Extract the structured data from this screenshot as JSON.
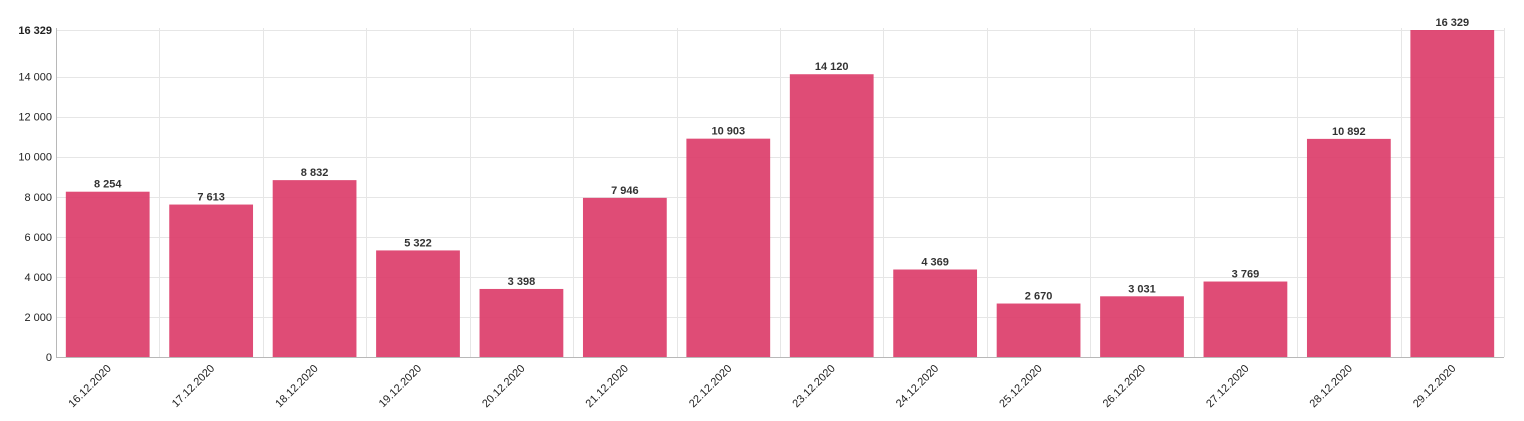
{
  "chart_data": {
    "type": "bar",
    "categories": [
      "16.12.2020",
      "17.12.2020",
      "18.12.2020",
      "19.12.2020",
      "20.12.2020",
      "21.12.2020",
      "22.12.2020",
      "23.12.2020",
      "24.12.2020",
      "25.12.2020",
      "26.12.2020",
      "27.12.2020",
      "28.12.2020",
      "29.12.2020"
    ],
    "values": [
      8254,
      7613,
      8832,
      5322,
      3398,
      7946,
      10903,
      14120,
      4369,
      2670,
      3031,
      3769,
      10892,
      16329
    ],
    "data_labels": [
      "8 254",
      "7 613",
      "8 832",
      "5 322",
      "3 398",
      "7 946",
      "10 903",
      "14 120",
      "4 369",
      "2 670",
      "3 031",
      "3 769",
      "10 892",
      "16 329"
    ],
    "y_ticks": [
      0,
      2000,
      4000,
      6000,
      8000,
      10000,
      12000,
      14000,
      16329
    ],
    "y_tick_labels": [
      "0",
      "2 000",
      "4 000",
      "6 000",
      "8 000",
      "10 000",
      "12 000",
      "14 000",
      "16 329"
    ],
    "ylim": [
      0,
      16329
    ],
    "grid": true,
    "legend": "none",
    "bar_color": "#dc3d6a",
    "title": "",
    "xlabel": "",
    "ylabel": ""
  }
}
